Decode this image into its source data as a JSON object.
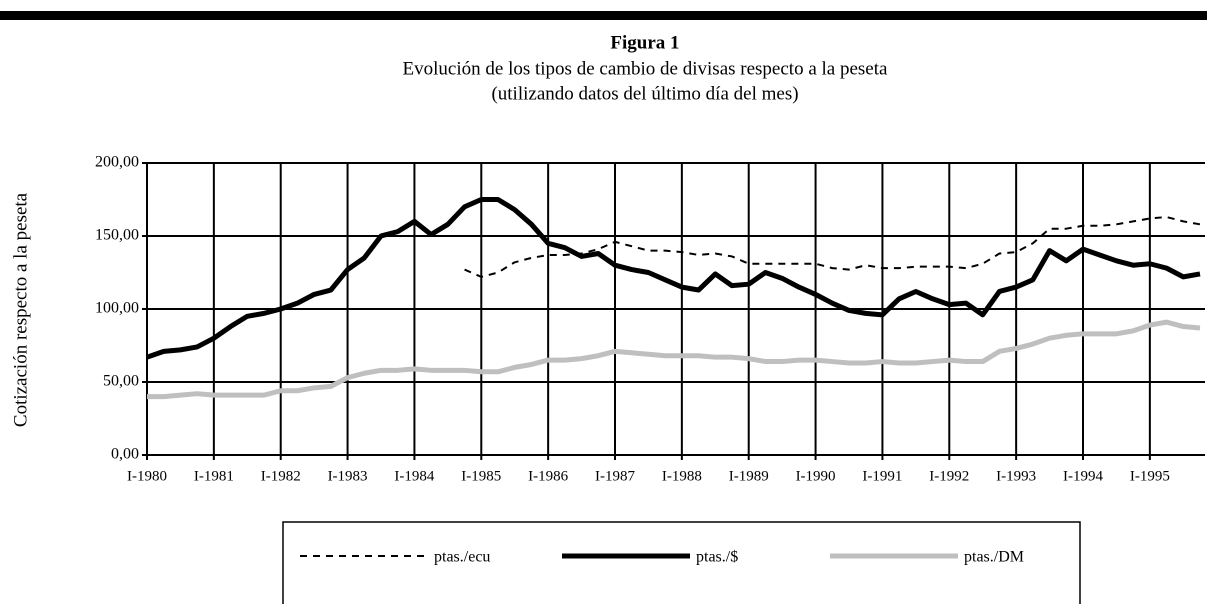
{
  "chart_data": {
    "type": "line",
    "title": "Figura 1",
    "subtitle": [
      "Evolución de los tipos de cambio de divisas respecto a la peseta",
      "(utilizando datos del último día del mes)"
    ],
    "y_label": "Cotización respecto a la peseta",
    "categories": [
      "I-1980",
      null,
      null,
      null,
      "I-1981",
      null,
      null,
      null,
      "I-1982",
      null,
      null,
      null,
      "I-1983",
      null,
      null,
      null,
      "I-1984",
      null,
      null,
      null,
      "I-1985",
      null,
      null,
      null,
      "I-1986",
      null,
      null,
      null,
      "I-1987",
      null,
      null,
      null,
      "I-1988",
      null,
      null,
      null,
      "I-1989",
      null,
      null,
      null,
      "I-1990",
      null,
      null,
      null,
      "I-1991",
      null,
      null,
      null,
      "I-1992",
      null,
      null,
      null,
      "I-1993",
      null,
      null,
      null,
      "I-1994",
      null,
      null,
      null,
      "I-1995",
      null,
      null,
      null
    ],
    "series": [
      {
        "name": "ptas./ecu",
        "color": "#000000",
        "dashed": true,
        "values": [
          null,
          null,
          null,
          null,
          null,
          null,
          null,
          null,
          null,
          null,
          null,
          null,
          null,
          null,
          null,
          null,
          null,
          null,
          null,
          127,
          122,
          125,
          132,
          135,
          137,
          137,
          138,
          141,
          146,
          143,
          140,
          140,
          139,
          137,
          138,
          136,
          131,
          131,
          131,
          131,
          131,
          128,
          127,
          130,
          128,
          128,
          129,
          129,
          129,
          128,
          131,
          138,
          139,
          145,
          155,
          155,
          157,
          157,
          158,
          160,
          162,
          163,
          160,
          158
        ]
      },
      {
        "name": "ptas./$",
        "color": "#000000",
        "values": [
          67,
          71,
          72,
          74,
          80,
          88,
          95,
          97,
          100,
          104,
          110,
          113,
          127,
          135,
          150,
          153,
          160,
          151,
          158,
          170,
          175,
          175,
          168,
          158,
          145,
          142,
          136,
          138,
          130,
          127,
          125,
          120,
          115,
          113,
          124,
          116,
          117,
          125,
          121,
          115,
          110,
          104,
          99,
          97,
          96,
          107,
          112,
          107,
          103,
          104,
          96,
          112,
          115,
          120,
          140,
          133,
          141,
          137,
          133,
          130,
          131,
          128,
          122,
          124
        ]
      },
      {
        "name": "ptas./DM",
        "color": "#bfbfbf",
        "values": [
          40,
          40,
          41,
          42,
          41,
          41,
          41,
          41,
          44,
          44,
          46,
          47,
          53,
          56,
          58,
          58,
          59,
          58,
          58,
          58,
          57,
          57,
          60,
          62,
          65,
          65,
          66,
          68,
          71,
          70,
          69,
          68,
          68,
          68,
          67,
          67,
          66,
          64,
          64,
          65,
          65,
          64,
          63,
          63,
          64,
          63,
          63,
          64,
          65,
          64,
          64,
          71,
          73,
          76,
          80,
          82,
          83,
          83,
          83,
          85,
          89,
          91,
          88,
          87
        ]
      }
    ],
    "ylim": [
      0,
      200
    ],
    "yticks": [
      {
        "value": 0,
        "label": "0,00"
      },
      {
        "value": 50,
        "label": "50,00"
      },
      {
        "value": 100,
        "label": "100,00"
      },
      {
        "value": 150,
        "label": "150,00"
      },
      {
        "value": 200,
        "label": "200,00"
      }
    ],
    "grid": true
  }
}
